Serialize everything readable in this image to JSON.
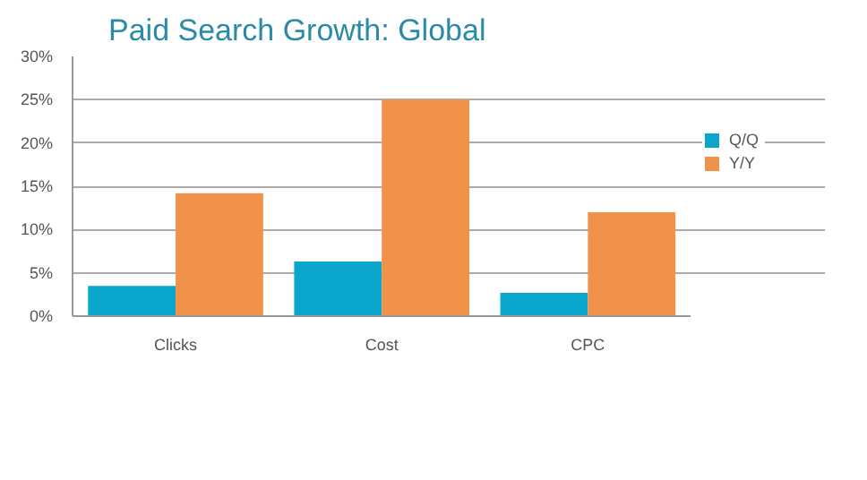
{
  "chart_data": {
    "type": "bar",
    "title": "Paid Search Growth: Global",
    "categories": [
      "Clicks",
      "Cost",
      "CPC"
    ],
    "series": [
      {
        "name": "Q/Q",
        "color": "#0aa6cc",
        "values": [
          3.5,
          6.3,
          2.7
        ]
      },
      {
        "name": "Y/Y",
        "color": "#f0924a",
        "values": [
          14.2,
          25,
          12.0
        ]
      }
    ],
    "ylim": [
      0,
      30
    ],
    "yticks": [
      {
        "value": 0,
        "label": "0%"
      },
      {
        "value": 5,
        "label": "5%"
      },
      {
        "value": 10,
        "label": "10%"
      },
      {
        "value": 15,
        "label": "15%"
      },
      {
        "value": 20,
        "label": "20%"
      },
      {
        "value": 25,
        "label": "25%"
      },
      {
        "value": 30,
        "label": "30%"
      }
    ],
    "grid": "y",
    "legend": "right"
  }
}
